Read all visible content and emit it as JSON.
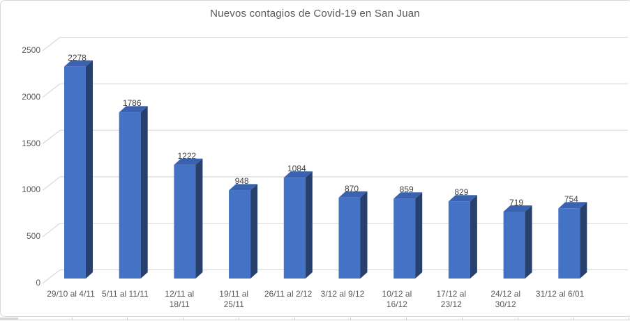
{
  "chart_data": {
    "type": "bar",
    "style": "3d-clustered-column",
    "title": "Nuevos contagios de Covid-19 en San Juan",
    "categories": [
      "29/10 al 4/11",
      "5/11 al 11/11",
      "12/11 al\n18/11",
      "19/11 al\n25/11",
      "26/11 al 2/12",
      "3/12 al 9/12",
      "10/12 al\n16/12",
      "17/12 al\n23/12",
      "24/12 al\n30/12",
      "31/12 al 6/01"
    ],
    "values": [
      2278,
      1786,
      1222,
      948,
      1084,
      870,
      859,
      829,
      719,
      754
    ],
    "y_ticks": [
      0,
      500,
      1000,
      1500,
      2000,
      2500
    ],
    "ylim": [
      0,
      2500
    ],
    "xlabel": "",
    "ylabel": "",
    "grid": true,
    "legend": false,
    "data_labels": true,
    "colors": {
      "bar_front": "#4472C4",
      "bar_top": "#3A62AE",
      "bar_side": "#27406E",
      "gridline": "#D9D9D9",
      "chart_border": "#D9D9D9",
      "title_text": "#595959",
      "axis_text": "#595959",
      "data_label_text": "#404040",
      "sheet_gridline": "#CFCFCF",
      "sheet_cell_fill": "#D8D8D8"
    }
  }
}
